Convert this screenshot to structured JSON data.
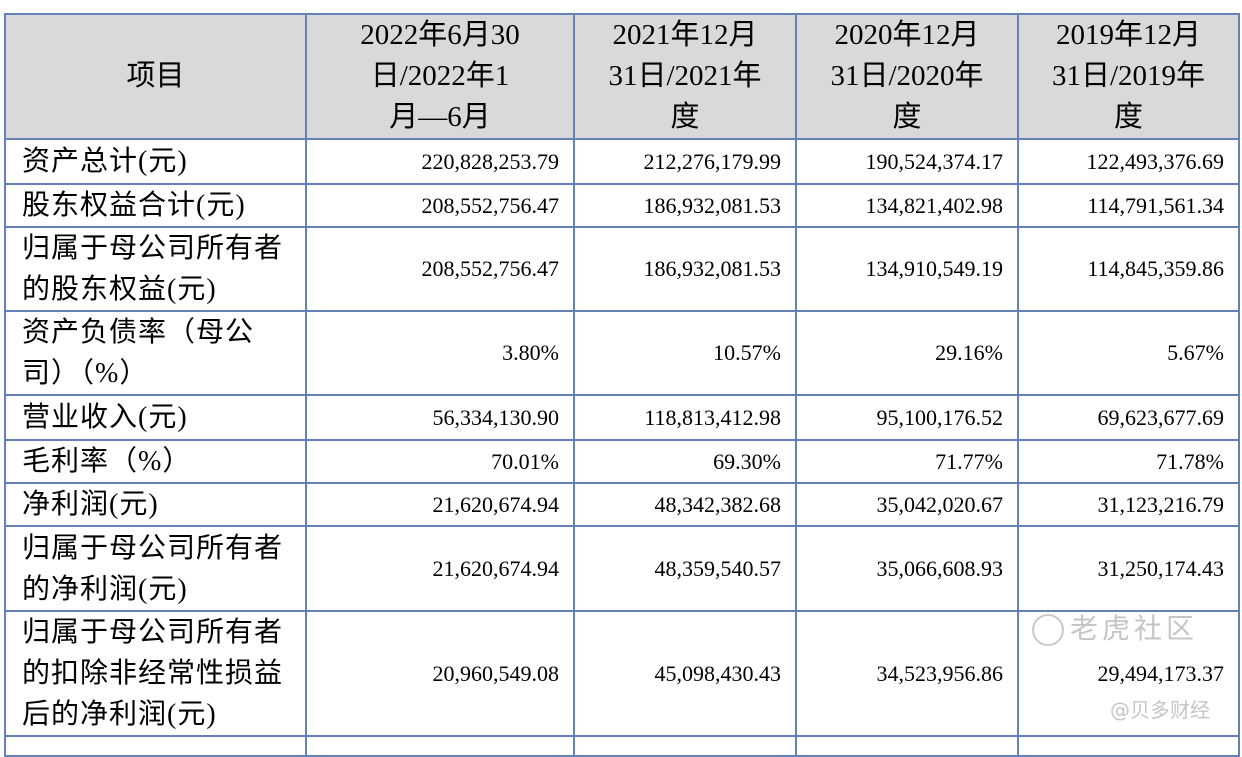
{
  "header": {
    "item": "项目",
    "col1": [
      "2022年6月30",
      "日/2022年1",
      "月—6月"
    ],
    "col2": [
      "2021年12月",
      "31日/2021年",
      "度"
    ],
    "col3": [
      "2020年12月",
      "31日/2020年",
      "度"
    ],
    "col4": [
      "2019年12月",
      "31日/2019年",
      "度"
    ]
  },
  "rows": [
    {
      "label": [
        "资产总计(元)"
      ],
      "values": [
        "220,828,253.79",
        "212,276,179.99",
        "190,524,374.17",
        "122,493,376.69"
      ]
    },
    {
      "label": [
        "股东权益合计(元)"
      ],
      "values": [
        "208,552,756.47",
        "186,932,081.53",
        "134,821,402.98",
        "114,791,561.34"
      ]
    },
    {
      "label": [
        "归属于母公司所有者",
        "的股东权益(元)"
      ],
      "values": [
        "208,552,756.47",
        "186,932,081.53",
        "134,910,549.19",
        "114,845,359.86"
      ]
    },
    {
      "label": [
        "资产负债率（母公",
        "司）（%）"
      ],
      "values": [
        "3.80%",
        "10.57%",
        "29.16%",
        "5.67%"
      ]
    },
    {
      "label": [
        "营业收入(元)"
      ],
      "values": [
        "56,334,130.90",
        "118,813,412.98",
        "95,100,176.52",
        "69,623,677.69"
      ]
    },
    {
      "label": [
        "毛利率（%）"
      ],
      "values": [
        "70.01%",
        "69.30%",
        "71.77%",
        "71.78%"
      ]
    },
    {
      "label": [
        "净利润(元)"
      ],
      "values": [
        "21,620,674.94",
        "48,342,382.68",
        "35,042,020.67",
        "31,123,216.79"
      ]
    },
    {
      "label": [
        "归属于母公司所有者",
        "的净利润(元)"
      ],
      "values": [
        "21,620,674.94",
        "48,359,540.57",
        "35,066,608.93",
        "31,250,174.43"
      ]
    },
    {
      "label": [
        "归属于母公司所有者",
        "的扣除非经常性损益",
        "后的净利润(元)"
      ],
      "values": [
        "20,960,549.08",
        "45,098,430.43",
        "34,523,956.86",
        "29,494,173.37"
      ]
    }
  ],
  "watermark": {
    "logo_text": "老虎社区",
    "credit": "@贝多财经"
  },
  "colors": {
    "border": "#6482b8",
    "header_bg": "#d9d9d9"
  }
}
